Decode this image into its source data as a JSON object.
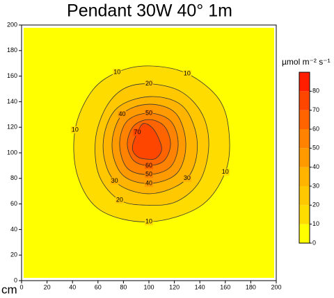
{
  "chart_data": {
    "type": "contour",
    "title": "Pendant 30W 40° 1m",
    "x_label": "cm",
    "xlim": [
      0,
      200
    ],
    "ylim": [
      0,
      200
    ],
    "xticks": [
      0,
      20,
      40,
      60,
      80,
      100,
      120,
      140,
      160,
      180,
      200
    ],
    "yticks": [
      0,
      20,
      40,
      60,
      80,
      100,
      120,
      140,
      160,
      180,
      200
    ],
    "contours": [
      {
        "level": 10,
        "x": [
          100,
          130,
          155,
          163,
          160,
          140,
          100,
          62,
          44,
          42,
          55,
          75
        ],
        "y": [
          168,
          162,
          142,
          115,
          85,
          58,
          46,
          55,
          82,
          118,
          148,
          163
        ]
      },
      {
        "level": 20,
        "x": [
          100,
          125,
          142,
          147,
          140,
          122,
          100,
          77,
          61,
          58,
          66,
          80
        ],
        "y": [
          154,
          148,
          130,
          105,
          78,
          62,
          59,
          63,
          82,
          110,
          135,
          150
        ]
      },
      {
        "level": 30,
        "x": [
          101,
          127,
          138,
          130,
          101,
          73,
          64,
          74
        ],
        "y": [
          144,
          136,
          108,
          80,
          68,
          78,
          106,
          134
        ]
      },
      {
        "level": 40,
        "x": [
          100,
          121,
          129,
          122,
          100,
          79,
          71,
          79
        ],
        "y": [
          138,
          131,
          107,
          84,
          76,
          83,
          106,
          130
        ]
      },
      {
        "level": 50,
        "x": [
          100,
          117,
          123,
          117,
          100,
          83,
          77,
          83
        ],
        "y": [
          131,
          125,
          107,
          89,
          83,
          88,
          107,
          125
        ]
      },
      {
        "level": 60,
        "x": [
          100,
          112,
          117,
          112,
          100,
          88,
          83,
          88
        ],
        "y": [
          126,
          121,
          107,
          94,
          90,
          94,
          107,
          121
        ]
      },
      {
        "level": 70,
        "x": [
          96,
          104,
          110,
          106,
          99,
          91,
          87,
          91
        ],
        "y": [
          123,
          118,
          104,
          96,
          95,
          97,
          104,
          116
        ]
      }
    ],
    "colorbar": {
      "label": "µmol m⁻² s⁻¹",
      "lim": [
        0,
        90
      ],
      "ticks": [
        0,
        10,
        20,
        30,
        40,
        50,
        60,
        70,
        80
      ],
      "colors": [
        "#ffff00",
        "#ffdc00",
        "#ffc800",
        "#ffb400",
        "#ff9b00",
        "#ff8200",
        "#ff6400",
        "#ff4600",
        "#ff1e00"
      ]
    }
  }
}
